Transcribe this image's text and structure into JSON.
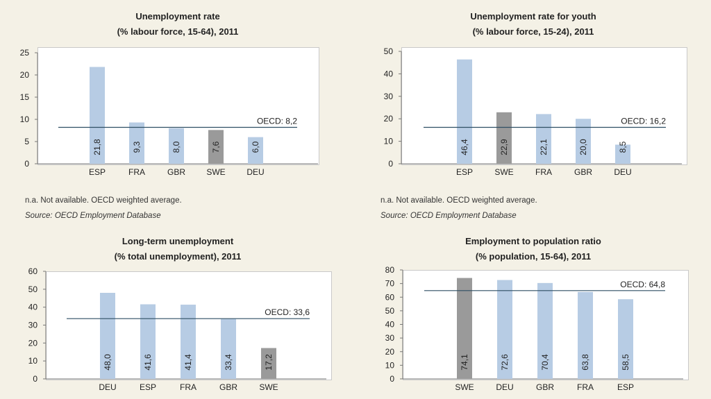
{
  "chart_data": [
    {
      "type": "bar",
      "title": "Unemployment rate",
      "subtitle": "(% labour force, 15-64), 2011",
      "categories": [
        "ESP",
        "FRA",
        "GBR",
        "SWE",
        "DEU"
      ],
      "values": [
        21.8,
        9.3,
        8.0,
        7.6,
        6.0
      ],
      "value_labels": [
        "21,8",
        "9,3",
        "8,0",
        "7,6",
        "6,0"
      ],
      "highlight": "SWE",
      "yticks": [
        "0",
        "5",
        "10",
        "15",
        "20",
        "25"
      ],
      "ylim": [
        0,
        25
      ],
      "reference": {
        "label": "OECD: 8,2",
        "value": 8.2
      },
      "grid": false
    },
    {
      "type": "bar",
      "title": "Unemployment rate for youth",
      "subtitle": "(% labour force, 15-24), 2011",
      "categories": [
        "ESP",
        "SWE",
        "FRA",
        "GBR",
        "DEU"
      ],
      "values": [
        46.4,
        22.9,
        22.1,
        20.0,
        8.5
      ],
      "value_labels": [
        "46,4",
        "22,9",
        "22,1",
        "20,0",
        "8,5"
      ],
      "highlight": "SWE",
      "yticks": [
        "0",
        "10",
        "20",
        "30",
        "40",
        "50"
      ],
      "ylim": [
        0,
        50
      ],
      "reference": {
        "label": "OECD: 16,2",
        "value": 16.2
      },
      "grid": false
    },
    {
      "type": "bar",
      "title": "Long-term unemployment",
      "subtitle": "(% total unemployment), 2011",
      "categories": [
        "DEU",
        "ESP",
        "FRA",
        "GBR",
        "SWE"
      ],
      "values": [
        48.0,
        41.6,
        41.4,
        33.4,
        17.2
      ],
      "value_labels": [
        "48,0",
        "41,6",
        "41,4",
        "33,4",
        "17,2"
      ],
      "highlight": "SWE",
      "yticks": [
        "0",
        "10",
        "20",
        "30",
        "40",
        "50",
        "60"
      ],
      "ylim": [
        0,
        60
      ],
      "reference": {
        "label": "OECD: 33,6",
        "value": 33.6
      },
      "grid": false
    },
    {
      "type": "bar",
      "title": "Employment to population ratio",
      "subtitle": "(% population, 15-64), 2011",
      "categories": [
        "SWE",
        "DEU",
        "GBR",
        "FRA",
        "ESP"
      ],
      "values": [
        74.1,
        72.6,
        70.4,
        63.8,
        58.5
      ],
      "value_labels": [
        "74,1",
        "72,6",
        "70,4",
        "63,8",
        "58,5"
      ],
      "highlight": "SWE",
      "yticks": [
        "0",
        "10",
        "20",
        "30",
        "40",
        "50",
        "60",
        "70",
        "80"
      ],
      "ylim": [
        0,
        80
      ],
      "reference": {
        "label": "OECD: 64,8",
        "value": 64.8
      },
      "grid": false
    }
  ],
  "notes": [
    {
      "line1": "n.a. Not available. OECD weighted average.",
      "line2": "Source: OECD Employment Database"
    },
    {
      "line1": "n.a. Not available. OECD weighted average.",
      "line2": "Source: OECD Employment Database"
    }
  ],
  "colors": {
    "bar": "#b7cce4",
    "highlight": "#9a9a9a",
    "reference_line": "#2e4e63",
    "plot_bg": "#ffffff",
    "page_bg": "#f4f1e6"
  }
}
